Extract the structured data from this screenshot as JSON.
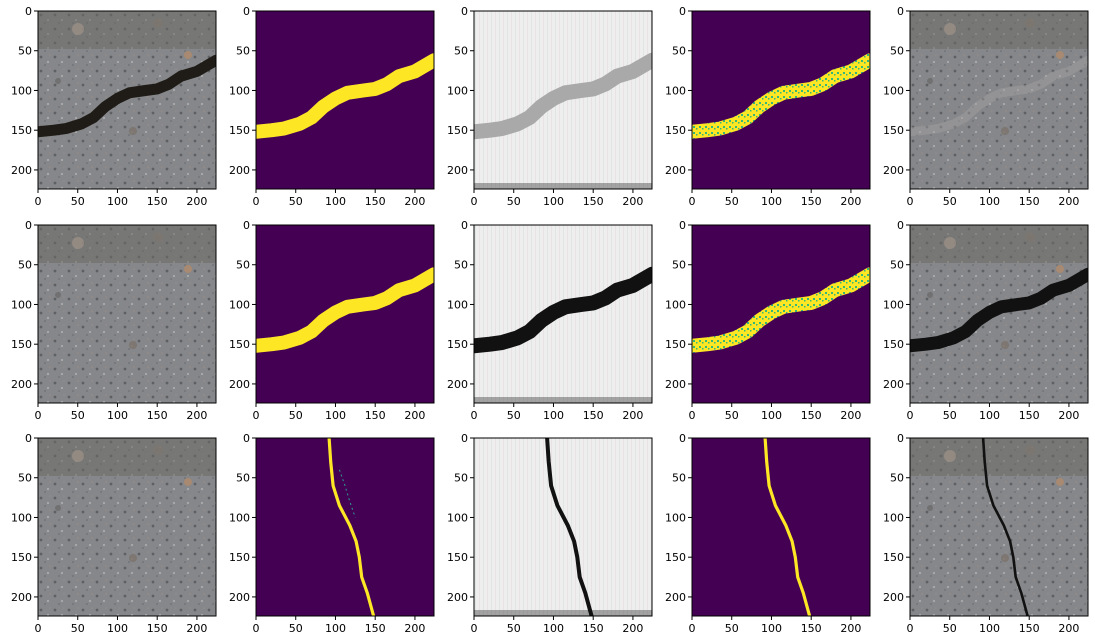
{
  "figure": {
    "layout": {
      "rows": 3,
      "cols": 5
    },
    "panels": [
      {
        "row": 0,
        "col": 0,
        "kind": "photo-road",
        "crack": "wide",
        "overlay": "dark-crack",
        "title": ""
      },
      {
        "row": 0,
        "col": 1,
        "kind": "mask-viridis",
        "crack": "wide",
        "overlay": "solid",
        "title": ""
      },
      {
        "row": 0,
        "col": 2,
        "kind": "gray-artifact",
        "crack": "wide",
        "overlay": "gray-crack",
        "title": ""
      },
      {
        "row": 0,
        "col": 3,
        "kind": "mask-viridis",
        "crack": "wide",
        "overlay": "speckled",
        "title": ""
      },
      {
        "row": 0,
        "col": 4,
        "kind": "photo-road",
        "crack": "wide",
        "overlay": "faint-crack",
        "title": ""
      },
      {
        "row": 1,
        "col": 0,
        "kind": "photo-road",
        "crack": "wide",
        "overlay": "none",
        "title": ""
      },
      {
        "row": 1,
        "col": 1,
        "kind": "mask-viridis",
        "crack": "wide",
        "overlay": "solid",
        "title": ""
      },
      {
        "row": 1,
        "col": 2,
        "kind": "gray-artifact",
        "crack": "wide",
        "overlay": "black-crack",
        "title": ""
      },
      {
        "row": 1,
        "col": 3,
        "kind": "mask-viridis",
        "crack": "wide",
        "overlay": "speckled",
        "title": ""
      },
      {
        "row": 1,
        "col": 4,
        "kind": "photo-road",
        "crack": "wide",
        "overlay": "black-crack",
        "title": ""
      },
      {
        "row": 2,
        "col": 0,
        "kind": "photo-road",
        "crack": "thin",
        "overlay": "none",
        "title": ""
      },
      {
        "row": 2,
        "col": 1,
        "kind": "mask-viridis",
        "crack": "thin",
        "overlay": "solid",
        "title": ""
      },
      {
        "row": 2,
        "col": 2,
        "kind": "gray-artifact",
        "crack": "thin",
        "overlay": "black-crack",
        "title": ""
      },
      {
        "row": 2,
        "col": 3,
        "kind": "mask-viridis",
        "crack": "thin",
        "overlay": "solid",
        "title": ""
      },
      {
        "row": 2,
        "col": 4,
        "kind": "photo-road",
        "crack": "thin",
        "overlay": "black-crack",
        "title": ""
      }
    ],
    "axes": {
      "xticks": [
        "0",
        "50",
        "100",
        "150",
        "200"
      ],
      "yticks": [
        "0",
        "50",
        "100",
        "150",
        "200"
      ],
      "xlim": [
        0,
        224
      ],
      "ylim": [
        224,
        0
      ]
    },
    "colors": {
      "viridis_bg": "#440154",
      "viridis_fg": "#FDE725",
      "viridis_mid": "#35B779",
      "road_base": "#85878a",
      "gray_bg": "#eeeeee",
      "crack_dark": "#111111"
    },
    "crack_paths": {
      "wide": [
        [
          0,
          152
        ],
        [
          20,
          150
        ],
        [
          35,
          148
        ],
        [
          55,
          142
        ],
        [
          70,
          134
        ],
        [
          85,
          120
        ],
        [
          100,
          110
        ],
        [
          115,
          103
        ],
        [
          135,
          100
        ],
        [
          150,
          98
        ],
        [
          165,
          92
        ],
        [
          180,
          82
        ],
        [
          200,
          76
        ],
        [
          224,
          62
        ]
      ],
      "thin": [
        [
          92,
          0
        ],
        [
          94,
          30
        ],
        [
          97,
          60
        ],
        [
          105,
          85
        ],
        [
          118,
          110
        ],
        [
          126,
          130
        ],
        [
          130,
          150
        ],
        [
          133,
          175
        ],
        [
          140,
          195
        ],
        [
          148,
          224
        ]
      ],
      "thin_dashed": [
        [
          105,
          40
        ],
        [
          112,
          60
        ],
        [
          118,
          80
        ],
        [
          125,
          100
        ]
      ]
    }
  }
}
